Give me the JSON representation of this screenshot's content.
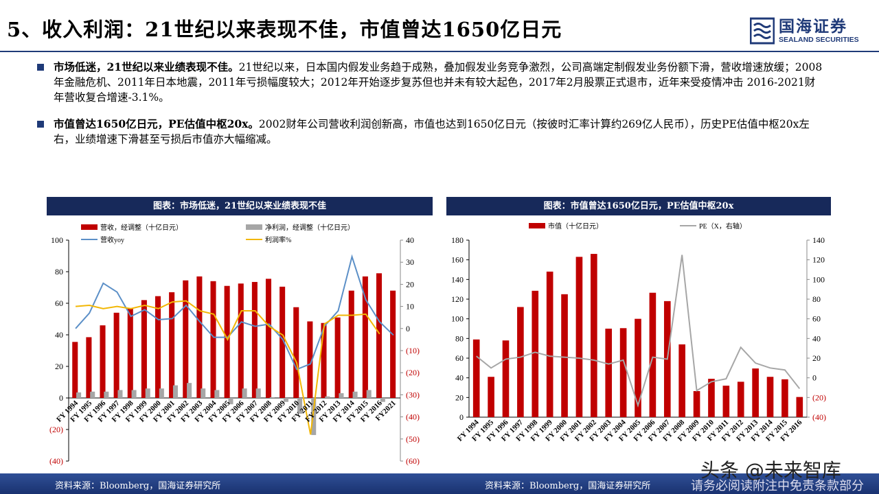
{
  "header": {
    "title": "5、收入利润：21世纪以来表现不佳，市值曾达1650亿日元",
    "logo_cn": "国海证券",
    "logo_en": "SEALAND SECURITIES"
  },
  "bullets": [
    {
      "lead": "市场低迷，21世纪以来业绩表现不佳。",
      "text": "21世纪以来，日本国内假发业务趋于成熟，叠加假发业务竞争激烈，公司高端定制假发业务份额下滑，营收增速放缓；2008年金融危机、2011年日本地震，2011年亏损幅度较大；2012年开始逐步复苏但也并未有较大起色，2017年2月股票正式退市，近年来受疫情冲击 2016-2021财年营收复合增速-3.1%。"
    },
    {
      "lead": "市值曾达1650亿日元，PE估值中枢20x。",
      "text": "2002财年公司营收利润创新高，市值也达到1650亿日元（按彼时汇率计算约269亿人民币），历史PE估值中枢20x左右，业绩增速下滑甚至亏损后市值亦大幅缩减。"
    }
  ],
  "footer": {
    "source_left": "资料来源：Bloomberg，国海证券研究所",
    "source_right": "资料来源：Bloomberg，国海证券研究所",
    "disclaimer": "请务必阅读附注中免责条款部分",
    "watermark": "头条 @未来智库"
  },
  "colors": {
    "bar": "#c00000",
    "gray": "#a6a6a6",
    "blue": "#5b8fc7",
    "yellow": "#f2b705",
    "navy": "#17295a"
  },
  "chart_data": [
    {
      "title": "图表：市场低迷，21世纪以来业绩表现不佳",
      "type": "bar+line",
      "categories": [
        "FY 1994",
        "FY 1995",
        "FY 1996",
        "FY 1997",
        "FY 1998",
        "FY 1999",
        "FY 2000",
        "FY 2001",
        "FY 2002",
        "FY 2003",
        "FY 2004",
        "FY 2005",
        "FY 2006",
        "FY 2007",
        "FY 2008",
        "FY 2009",
        "FY 2010",
        "FY 2011",
        "FY 2012",
        "FY 2013",
        "FY 2014",
        "FY 2015",
        "FY 2016",
        "FY2021"
      ],
      "ylim": [
        -40,
        100
      ],
      "y_ticks": [
        "(40)",
        "(20)",
        "0",
        "20",
        "40",
        "60",
        "80",
        "100"
      ],
      "y2lim": [
        -60,
        40
      ],
      "y2_ticks": [
        "(60)",
        "(50)",
        "(40)",
        "(30)",
        "(20)",
        "(10)",
        "0",
        "10",
        "20",
        "30",
        "40"
      ],
      "series": [
        {
          "name": "营收，经调整（十亿日元）",
          "kind": "bar",
          "axis": "left",
          "values": [
            35.5,
            38.5,
            46,
            54,
            57,
            62,
            64.5,
            67,
            74.5,
            77,
            74,
            71,
            72.5,
            73.5,
            75.5,
            70.5,
            57.5,
            48.5,
            47.5,
            51,
            68,
            77,
            79,
            68
          ]
        },
        {
          "name": "净利润，经调整（十亿日元）",
          "kind": "bar",
          "axis": "left",
          "values": [
            3.5,
            4,
            4,
            5,
            5,
            6,
            6,
            8,
            9.5,
            6,
            5,
            -4,
            6,
            6,
            0.5,
            -2.5,
            -10,
            -23.5,
            1,
            3,
            4,
            5,
            -2.5,
            null
          ]
        },
        {
          "name": "营收yoy",
          "kind": "line",
          "axis": "right",
          "values": [
            0,
            7,
            20.5,
            16.5,
            5.5,
            8.5,
            4,
            4.5,
            10.5,
            3,
            -4,
            -4,
            3,
            1,
            2,
            -5,
            -18.5,
            -16,
            1,
            8,
            32.5,
            13,
            3,
            -3
          ]
        },
        {
          "name": "利润率%",
          "kind": "line",
          "axis": "right",
          "values": [
            10,
            10.5,
            9,
            10,
            9,
            10.5,
            9,
            12,
            12.5,
            8,
            6.5,
            -5,
            8,
            8,
            1,
            -3,
            -15.5,
            -48,
            2,
            6,
            6,
            6.5,
            -2.5,
            null
          ]
        }
      ]
    },
    {
      "title": "图表：市值曾达1650亿日元，PE估值中枢20x",
      "type": "bar+line",
      "categories": [
        "FY 1994",
        "FY 1995",
        "FY 1996",
        "FY 1997",
        "FY 1998",
        "FY 1999",
        "FY 2000",
        "FY 2001",
        "FY 2002",
        "FY 2003",
        "FY 2004",
        "FY 2005",
        "FY 2006",
        "FY 2007",
        "FY 2008",
        "FY 2009",
        "FY 2010",
        "FY 2011",
        "FY 2012",
        "FY 2013",
        "FY 2014",
        "FY 2015",
        "FY 2016"
      ],
      "ylim": [
        0,
        180
      ],
      "y_ticks": [
        "0",
        "20",
        "40",
        "60",
        "80",
        "100",
        "120",
        "140",
        "160",
        "180"
      ],
      "y2lim": [
        -40,
        140
      ],
      "y2_ticks": [
        "(40)",
        "(20)",
        "0",
        "20",
        "40",
        "60",
        "80",
        "100",
        "120",
        "140"
      ],
      "series": [
        {
          "name": "市值（十亿日元）",
          "kind": "bar",
          "axis": "left",
          "values": [
            79,
            41,
            78,
            112,
            128.5,
            148,
            125,
            163,
            166,
            90,
            90.5,
            100,
            126.5,
            118,
            74,
            26.5,
            39,
            32,
            36,
            49.5,
            41,
            38.5,
            20.5
          ]
        },
        {
          "name": "PE（X，右轴）",
          "kind": "line",
          "axis": "right",
          "values": [
            22,
            10,
            19,
            21,
            26,
            22,
            21,
            20,
            18,
            14,
            18,
            -28,
            21,
            19,
            125,
            -13,
            -4,
            -1,
            31,
            15,
            10,
            8,
            -11
          ]
        }
      ]
    }
  ]
}
